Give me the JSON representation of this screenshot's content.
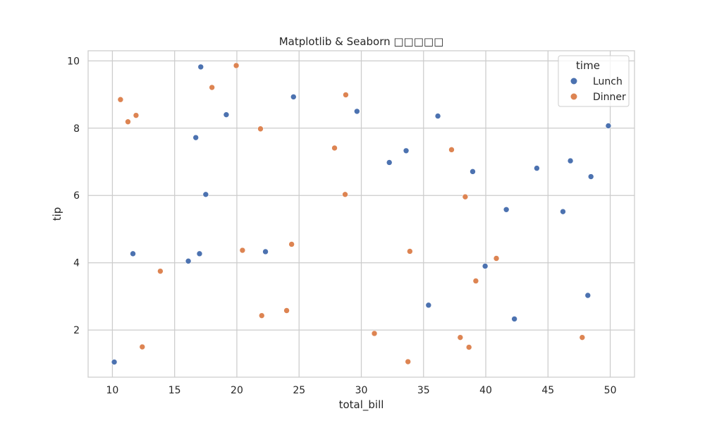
{
  "chart_data": {
    "type": "scatter",
    "title": "Matplotlib & Seaborn □□□□□",
    "xlabel": "total_bill",
    "ylabel": "tip",
    "xlim": [
      8.05,
      51.95
    ],
    "ylim": [
      0.6,
      10.3
    ],
    "xticks": [
      10,
      15,
      20,
      25,
      30,
      35,
      40,
      45,
      50
    ],
    "yticks": [
      2,
      4,
      6,
      8,
      10
    ],
    "grid": true,
    "legend": {
      "title": "time",
      "position": "upper-right",
      "entries": [
        "Lunch",
        "Dinner"
      ]
    },
    "colors": {
      "Lunch": "#4c72b0",
      "Dinner": "#dd8452"
    },
    "series": [
      {
        "name": "Lunch",
        "points": [
          [
            10.15,
            1.05
          ],
          [
            11.65,
            4.27
          ],
          [
            16.1,
            4.05
          ],
          [
            16.7,
            7.72
          ],
          [
            17.0,
            4.27
          ],
          [
            17.1,
            9.82
          ],
          [
            17.5,
            6.03
          ],
          [
            19.15,
            8.4
          ],
          [
            22.3,
            4.33
          ],
          [
            24.55,
            8.93
          ],
          [
            29.65,
            8.5
          ],
          [
            32.25,
            6.98
          ],
          [
            33.6,
            7.33
          ],
          [
            35.4,
            2.74
          ],
          [
            36.15,
            8.36
          ],
          [
            38.95,
            6.71
          ],
          [
            39.95,
            3.9
          ],
          [
            41.65,
            5.58
          ],
          [
            42.3,
            2.33
          ],
          [
            44.1,
            6.81
          ],
          [
            46.2,
            5.52
          ],
          [
            46.8,
            7.03
          ],
          [
            48.2,
            3.03
          ],
          [
            48.45,
            6.56
          ],
          [
            49.85,
            8.07
          ]
        ]
      },
      {
        "name": "Dinner",
        "points": [
          [
            10.65,
            8.85
          ],
          [
            11.25,
            8.19
          ],
          [
            11.9,
            8.38
          ],
          [
            12.4,
            1.5
          ],
          [
            13.85,
            3.75
          ],
          [
            18.0,
            9.21
          ],
          [
            19.95,
            9.86
          ],
          [
            20.45,
            4.37
          ],
          [
            21.9,
            7.98
          ],
          [
            22.0,
            2.43
          ],
          [
            24.0,
            2.58
          ],
          [
            24.4,
            4.55
          ],
          [
            27.85,
            7.41
          ],
          [
            28.7,
            6.03
          ],
          [
            28.75,
            8.99
          ],
          [
            31.05,
            1.9
          ],
          [
            33.75,
            1.06
          ],
          [
            33.9,
            4.34
          ],
          [
            37.25,
            7.36
          ],
          [
            37.95,
            1.78
          ],
          [
            38.35,
            5.96
          ],
          [
            38.65,
            1.49
          ],
          [
            39.2,
            3.46
          ],
          [
            40.85,
            4.13
          ],
          [
            47.75,
            1.78
          ]
        ]
      }
    ]
  }
}
